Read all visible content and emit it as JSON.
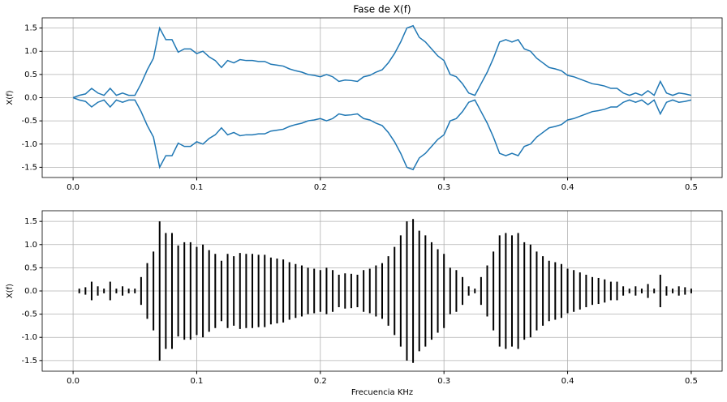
{
  "chart_data": [
    {
      "type": "line",
      "title": "Fase de X(f)",
      "ylabel": "X(f)",
      "grid": true,
      "xlim": [
        -0.025,
        0.525
      ],
      "ylim": [
        -1.72,
        1.72
      ],
      "xticks": [
        {
          "value": 0,
          "label": "0.0"
        },
        0.1,
        0.2,
        0.3,
        0.4,
        0.5
      ],
      "yticks": [
        -1.5,
        {
          "value": -1,
          "label": "-1.0"
        },
        -0.5,
        {
          "value": 0,
          "label": "0.0"
        },
        0.5,
        {
          "value": 1,
          "label": "1.0"
        },
        1.5
      ],
      "x": [
        0,
        0.005,
        0.01,
        0.015,
        0.02,
        0.025,
        0.03,
        0.035,
        0.04,
        0.045,
        0.05,
        0.055,
        0.06,
        0.065,
        0.07,
        0.075,
        0.08,
        0.085,
        0.09,
        0.095,
        0.1,
        0.105,
        0.11,
        0.115,
        0.12,
        0.125,
        0.13,
        0.135,
        0.14,
        0.145,
        0.15,
        0.155,
        0.16,
        0.165,
        0.17,
        0.175,
        0.18,
        0.185,
        0.19,
        0.195,
        0.2,
        0.205,
        0.21,
        0.215,
        0.22,
        0.225,
        0.23,
        0.235,
        0.24,
        0.245,
        0.25,
        0.255,
        0.26,
        0.265,
        0.27,
        0.275,
        0.28,
        0.285,
        0.29,
        0.295,
        0.3,
        0.305,
        0.31,
        0.315,
        0.32,
        0.325,
        0.33,
        0.335,
        0.34,
        0.345,
        0.35,
        0.355,
        0.36,
        0.365,
        0.37,
        0.375,
        0.38,
        0.385,
        0.39,
        0.395,
        0.4,
        0.405,
        0.41,
        0.415,
        0.42,
        0.425,
        0.43,
        0.435,
        0.44,
        0.445,
        0.45,
        0.455,
        0.46,
        0.465,
        0.47,
        0.475,
        0.48,
        0.485,
        0.49,
        0.495,
        0.5
      ],
      "series": [
        {
          "color": "#1f77b4",
          "values": [
            0,
            0.05,
            0.08,
            0.2,
            0.1,
            0.05,
            0.2,
            0.05,
            0.1,
            0.05,
            0.05,
            0.3,
            0.6,
            0.85,
            1.5,
            1.25,
            1.25,
            0.98,
            1.05,
            1.05,
            0.95,
            1.0,
            0.88,
            0.8,
            0.65,
            0.8,
            0.75,
            0.82,
            0.8,
            0.8,
            0.78,
            0.78,
            0.72,
            0.7,
            0.68,
            0.62,
            0.58,
            0.55,
            0.5,
            0.48,
            0.45,
            0.5,
            0.45,
            0.35,
            0.38,
            0.37,
            0.35,
            0.45,
            0.48,
            0.55,
            0.6,
            0.75,
            0.95,
            1.2,
            1.5,
            1.55,
            1.3,
            1.2,
            1.05,
            0.9,
            0.8,
            0.5,
            0.45,
            0.3,
            0.1,
            0.05,
            0.3,
            0.55,
            0.85,
            1.2,
            1.25,
            1.2,
            1.25,
            1.05,
            1.0,
            0.85,
            0.75,
            0.65,
            0.62,
            0.58,
            0.48,
            0.45,
            0.4,
            0.35,
            0.3,
            0.28,
            0.25,
            0.2,
            0.2,
            0.1,
            0.05,
            0.1,
            0.05,
            0.15,
            0.05,
            0.35,
            0.1,
            0.05,
            0.1,
            0.08,
            0.05
          ]
        },
        {
          "color": "#1f77b4",
          "values": [
            0,
            -0.05,
            -0.08,
            -0.2,
            -0.1,
            -0.05,
            -0.2,
            -0.05,
            -0.1,
            -0.05,
            -0.05,
            -0.3,
            -0.6,
            -0.85,
            -1.5,
            -1.25,
            -1.25,
            -0.98,
            -1.05,
            -1.05,
            -0.95,
            -1.0,
            -0.88,
            -0.8,
            -0.65,
            -0.8,
            -0.75,
            -0.82,
            -0.8,
            -0.8,
            -0.78,
            -0.78,
            -0.72,
            -0.7,
            -0.68,
            -0.62,
            -0.58,
            -0.55,
            -0.5,
            -0.48,
            -0.45,
            -0.5,
            -0.45,
            -0.35,
            -0.38,
            -0.37,
            -0.35,
            -0.45,
            -0.48,
            -0.55,
            -0.6,
            -0.75,
            -0.95,
            -1.2,
            -1.5,
            -1.55,
            -1.3,
            -1.2,
            -1.05,
            -0.9,
            -0.8,
            -0.5,
            -0.45,
            -0.3,
            -0.1,
            -0.05,
            -0.3,
            -0.55,
            -0.85,
            -1.2,
            -1.25,
            -1.2,
            -1.25,
            -1.05,
            -1.0,
            -0.85,
            -0.75,
            -0.65,
            -0.62,
            -0.58,
            -0.48,
            -0.45,
            -0.4,
            -0.35,
            -0.3,
            -0.28,
            -0.25,
            -0.2,
            -0.2,
            -0.1,
            -0.05,
            -0.1,
            -0.05,
            -0.15,
            -0.05,
            -0.35,
            -0.1,
            -0.05,
            -0.1,
            -0.08,
            -0.05
          ]
        }
      ]
    },
    {
      "type": "vlines",
      "xlabel": "Frecuencia KHz",
      "ylabel": "X(f)",
      "grid": true,
      "color": "#000000",
      "xlim": [
        -0.025,
        0.525
      ],
      "ylim": [
        -1.73,
        1.73
      ],
      "xticks": [
        {
          "value": 0,
          "label": "0.0"
        },
        0.1,
        0.2,
        0.3,
        0.4,
        0.5
      ],
      "yticks": [
        -1.5,
        {
          "value": -1,
          "label": "-1.0"
        },
        -0.5,
        {
          "value": 0,
          "label": "0.0"
        },
        0.5,
        {
          "value": 1,
          "label": "1.0"
        },
        1.5
      ],
      "x": [
        0,
        0.005,
        0.01,
        0.015,
        0.02,
        0.025,
        0.03,
        0.035,
        0.04,
        0.045,
        0.05,
        0.055,
        0.06,
        0.065,
        0.07,
        0.075,
        0.08,
        0.085,
        0.09,
        0.095,
        0.1,
        0.105,
        0.11,
        0.115,
        0.12,
        0.125,
        0.13,
        0.135,
        0.14,
        0.145,
        0.15,
        0.155,
        0.16,
        0.165,
        0.17,
        0.175,
        0.18,
        0.185,
        0.19,
        0.195,
        0.2,
        0.205,
        0.21,
        0.215,
        0.22,
        0.225,
        0.23,
        0.235,
        0.24,
        0.245,
        0.25,
        0.255,
        0.26,
        0.265,
        0.27,
        0.275,
        0.28,
        0.285,
        0.29,
        0.295,
        0.3,
        0.305,
        0.31,
        0.315,
        0.32,
        0.325,
        0.33,
        0.335,
        0.34,
        0.345,
        0.35,
        0.355,
        0.36,
        0.365,
        0.37,
        0.375,
        0.38,
        0.385,
        0.39,
        0.395,
        0.4,
        0.405,
        0.41,
        0.415,
        0.42,
        0.425,
        0.43,
        0.435,
        0.44,
        0.445,
        0.45,
        0.455,
        0.46,
        0.465,
        0.47,
        0.475,
        0.48,
        0.485,
        0.49,
        0.495,
        0.5
      ],
      "ymax": [
        0,
        0.05,
        0.08,
        0.2,
        0.1,
        0.05,
        0.2,
        0.05,
        0.1,
        0.05,
        0.05,
        0.3,
        0.6,
        0.85,
        1.5,
        1.25,
        1.25,
        0.98,
        1.05,
        1.05,
        0.95,
        1.0,
        0.88,
        0.8,
        0.65,
        0.8,
        0.75,
        0.82,
        0.8,
        0.8,
        0.78,
        0.78,
        0.72,
        0.7,
        0.68,
        0.62,
        0.58,
        0.55,
        0.5,
        0.48,
        0.45,
        0.5,
        0.45,
        0.35,
        0.38,
        0.37,
        0.35,
        0.45,
        0.48,
        0.55,
        0.6,
        0.75,
        0.95,
        1.2,
        1.5,
        1.55,
        1.3,
        1.2,
        1.05,
        0.9,
        0.8,
        0.5,
        0.45,
        0.3,
        0.1,
        0.05,
        0.3,
        0.55,
        0.85,
        1.2,
        1.25,
        1.2,
        1.25,
        1.05,
        1.0,
        0.85,
        0.75,
        0.65,
        0.62,
        0.58,
        0.48,
        0.45,
        0.4,
        0.35,
        0.3,
        0.28,
        0.25,
        0.2,
        0.2,
        0.1,
        0.05,
        0.1,
        0.05,
        0.15,
        0.05,
        0.35,
        0.1,
        0.05,
        0.1,
        0.08,
        0.05
      ],
      "ymin": [
        0,
        -0.05,
        -0.08,
        -0.2,
        -0.1,
        -0.05,
        -0.2,
        -0.05,
        -0.1,
        -0.05,
        -0.05,
        -0.3,
        -0.6,
        -0.85,
        -1.5,
        -1.25,
        -1.25,
        -0.98,
        -1.05,
        -1.05,
        -0.95,
        -1.0,
        -0.88,
        -0.8,
        -0.65,
        -0.8,
        -0.75,
        -0.82,
        -0.8,
        -0.8,
        -0.78,
        -0.78,
        -0.72,
        -0.7,
        -0.68,
        -0.62,
        -0.58,
        -0.55,
        -0.5,
        -0.48,
        -0.45,
        -0.5,
        -0.45,
        -0.35,
        -0.38,
        -0.37,
        -0.35,
        -0.45,
        -0.48,
        -0.55,
        -0.6,
        -0.75,
        -0.95,
        -1.2,
        -1.5,
        -1.55,
        -1.3,
        -1.2,
        -1.05,
        -0.9,
        -0.8,
        -0.5,
        -0.45,
        -0.3,
        -0.1,
        -0.05,
        -0.3,
        -0.55,
        -0.85,
        -1.2,
        -1.25,
        -1.2,
        -1.25,
        -1.05,
        -1.0,
        -0.85,
        -0.75,
        -0.65,
        -0.62,
        -0.58,
        -0.48,
        -0.45,
        -0.4,
        -0.35,
        -0.3,
        -0.28,
        -0.25,
        -0.2,
        -0.2,
        -0.1,
        -0.05,
        -0.1,
        -0.05,
        -0.15,
        -0.05,
        -0.35,
        -0.1,
        -0.05,
        -0.1,
        -0.08,
        -0.05
      ]
    }
  ]
}
